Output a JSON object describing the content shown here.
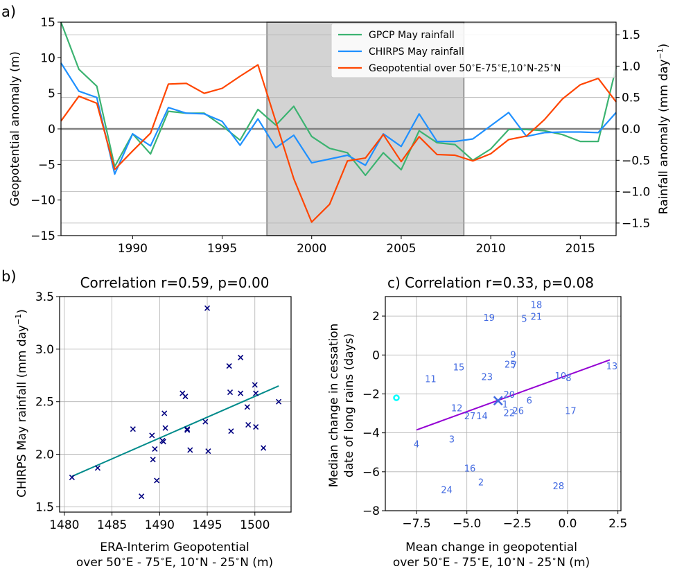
{
  "panels": {
    "a_label": "a)",
    "b_label": "b)",
    "c_label": "c)"
  },
  "chart_data": [
    {
      "type": "line",
      "panel": "a",
      "title": "",
      "xlabel": "",
      "ylabel": "Geopotential anomaly (m)",
      "ylabel_right_text": "Rainfall anomaly (mm day",
      "ylabel_right_sup": "−1",
      "xlim": [
        1986,
        2017
      ],
      "ylim": [
        -15,
        15
      ],
      "ylim_right": [
        -1.7,
        1.7
      ],
      "xticks": [
        1990,
        1995,
        2000,
        2005,
        2010,
        2015
      ],
      "yticks": [
        -15,
        -10,
        -5,
        0,
        5,
        10,
        15
      ],
      "yticks_right": [
        -1.5,
        -1.0,
        -0.5,
        0.0,
        0.5,
        1.0,
        1.5
      ],
      "ytick_labels_right": [
        "−1.5",
        "−1.0",
        "−0.5",
        "0.0",
        "0.5",
        "1.0",
        "1.5"
      ],
      "ytick_labels": [
        "−15",
        "−10",
        "−5",
        "0",
        "5",
        "10",
        "15"
      ],
      "shaded_period": [
        1997.5,
        2008.5
      ],
      "grid": "horizontal (right axis)",
      "legend_position": "upper-center",
      "series": [
        {
          "name": "GPCP May rainfall",
          "axis": "right",
          "color": "#3cb371",
          "x": [
            1986,
            1987,
            1988,
            1989,
            1990,
            1991,
            1992,
            1993,
            1994,
            1995,
            1996,
            1997,
            1998,
            1999,
            2000,
            2001,
            2002,
            2003,
            2004,
            2005,
            2006,
            2007,
            2008,
            2009,
            2010,
            2011,
            2012,
            2013,
            2014,
            2015,
            2016,
            2017
          ],
          "values": [
            1.7,
            0.95,
            0.68,
            -0.6,
            -0.08,
            -0.4,
            0.28,
            0.25,
            0.25,
            0.05,
            -0.18,
            0.31,
            0.06,
            0.36,
            -0.12,
            -0.31,
            -0.38,
            -0.74,
            -0.38,
            -0.65,
            -0.03,
            -0.22,
            -0.25,
            -0.5,
            -0.32,
            -0.01,
            -0.01,
            -0.03,
            -0.09,
            -0.2,
            -0.2,
            0.98
          ]
        },
        {
          "name": "CHIRPS May rainfall",
          "axis": "right",
          "color": "#1e90ff",
          "x": [
            1986,
            1987,
            1988,
            1989,
            1990,
            1991,
            1992,
            1993,
            1994,
            1995,
            1996,
            1997,
            1998,
            1999,
            2000,
            2001,
            2002,
            2003,
            2004,
            2005,
            2006,
            2007,
            2008,
            2009,
            2010,
            2011,
            2012,
            2013,
            2014,
            2015,
            2016,
            2017
          ],
          "values": [
            1.05,
            0.6,
            0.5,
            -0.72,
            -0.08,
            -0.27,
            0.34,
            0.25,
            0.24,
            0.12,
            -0.26,
            0.16,
            -0.3,
            -0.1,
            -0.54,
            -0.48,
            -0.42,
            -0.58,
            -0.08,
            -0.28,
            0.24,
            -0.2,
            -0.2,
            -0.16,
            0.05,
            0.26,
            -0.12,
            -0.06,
            -0.05,
            -0.05,
            -0.06,
            0.26
          ]
        },
        {
          "name": "Geopotential over 50°E-75°E,10°N-25°N",
          "axis": "left",
          "color": "#ff4500",
          "x": [
            1986,
            1987,
            1988,
            1989,
            1990,
            1991,
            1992,
            1993,
            1994,
            1995,
            1996,
            1997,
            1998,
            1999,
            2000,
            2001,
            2002,
            2003,
            2004,
            2005,
            2006,
            2007,
            2008,
            2009,
            2010,
            2011,
            2012,
            2013,
            2014,
            2015,
            2016,
            2017
          ],
          "values": [
            1.1,
            4.6,
            3.6,
            -5.7,
            -3.1,
            -0.6,
            6.3,
            6.4,
            5.0,
            5.7,
            7.4,
            9.0,
            1.0,
            -7.0,
            -13.1,
            -10.6,
            -4.5,
            -4.1,
            -0.8,
            -4.6,
            -1.1,
            -3.6,
            -3.7,
            -4.5,
            -3.5,
            -1.5,
            -1.0,
            1.3,
            4.2,
            6.2,
            7.1,
            3.8
          ]
        }
      ]
    },
    {
      "type": "scatter",
      "panel": "b",
      "title": "Correlation r=0.59, p=0.00",
      "xlabel": "ERA-Interim Geopotential",
      "xlabel2_prefix": "over 50",
      "xlabel2_mid1": "E - 75",
      "xlabel2_mid2": "E, 10",
      "xlabel2_mid3": "N - 25",
      "xlabel2_suffix": "N (m)",
      "ylabel": "CHIRPS May rainfall (mm day",
      "ylabel_sup": "−1",
      "xlim": [
        1479.5,
        1503.8
      ],
      "ylim": [
        1.45,
        3.5
      ],
      "xticks": [
        1480,
        1485,
        1490,
        1495,
        1500
      ],
      "yticks": [
        1.5,
        2.0,
        2.5,
        3.0,
        3.5
      ],
      "ytick_labels": [
        "1.5",
        "2.0",
        "2.5",
        "3.0",
        "3.5"
      ],
      "grid": true,
      "marker_color": "#000080",
      "fit_color": "#008b8b",
      "fit_line": {
        "x": [
          1480.8,
          1502.5
        ],
        "y": [
          1.79,
          2.65
        ]
      },
      "points": [
        [
          1480.8,
          1.78
        ],
        [
          1483.5,
          1.87
        ],
        [
          1487.2,
          2.24
        ],
        [
          1488.1,
          1.6
        ],
        [
          1489.2,
          2.18
        ],
        [
          1489.3,
          1.95
        ],
        [
          1489.5,
          2.05
        ],
        [
          1489.7,
          1.75
        ],
        [
          1490.3,
          2.13
        ],
        [
          1490.4,
          2.12
        ],
        [
          1490.5,
          2.39
        ],
        [
          1490.6,
          2.25
        ],
        [
          1492.4,
          2.58
        ],
        [
          1492.7,
          2.55
        ],
        [
          1492.9,
          2.24
        ],
        [
          1492.9,
          2.23
        ],
        [
          1493.2,
          2.04
        ],
        [
          1494.8,
          2.31
        ],
        [
          1495.0,
          3.39
        ],
        [
          1495.1,
          2.03
        ],
        [
          1497.3,
          2.84
        ],
        [
          1497.4,
          2.59
        ],
        [
          1497.5,
          2.22
        ],
        [
          1498.5,
          2.92
        ],
        [
          1498.5,
          2.58
        ],
        [
          1499.2,
          2.45
        ],
        [
          1499.3,
          2.28
        ],
        [
          1500.0,
          2.66
        ],
        [
          1500.1,
          2.58
        ],
        [
          1500.1,
          2.26
        ],
        [
          1500.9,
          2.06
        ],
        [
          1502.5,
          2.5
        ]
      ]
    },
    {
      "type": "scatter",
      "panel": "c",
      "title": "c) Correlation r=0.33, p=0.08",
      "xlabel": "Mean change in geopotential",
      "xlabel2_prefix": "over 50",
      "xlabel2_mid1": "E - 75",
      "xlabel2_mid2": "E, 10",
      "xlabel2_mid3": "N - 25",
      "xlabel2_suffix": "N (m)",
      "ylabel": "Median change in cessation",
      "ylabel2": "date of long rains (days)",
      "xlim": [
        -9.05,
        2.65
      ],
      "ylim": [
        -8,
        3
      ],
      "xticks": [
        -7.5,
        -5.0,
        -2.5,
        0.0,
        2.5
      ],
      "xtick_labels": [
        "−7.5",
        "−5.0",
        "−2.5",
        "0.0",
        "2.5"
      ],
      "yticks": [
        -8,
        -6,
        -4,
        -2,
        0,
        2
      ],
      "ytick_labels": [
        "−8",
        "−6",
        "−4",
        "−2",
        "0",
        "2"
      ],
      "grid": true,
      "label_color": "#4169e1",
      "fit_color": "#9400d3",
      "fit_line": {
        "x": [
          -7.5,
          2.1
        ],
        "y": [
          -3.85,
          -0.25
        ]
      },
      "mean_marker": {
        "x": -3.45,
        "y": -2.35,
        "color": "#4169e1"
      },
      "outlier_marker": {
        "x": -8.5,
        "y": -2.2,
        "color": "#00ffff"
      },
      "labelled_points": [
        {
          "label": "18",
          "x": -1.55,
          "y": 2.55
        },
        {
          "label": "19",
          "x": -3.9,
          "y": 1.9
        },
        {
          "label": "5",
          "x": -2.15,
          "y": 1.85
        },
        {
          "label": "21",
          "x": -1.55,
          "y": 1.95
        },
        {
          "label": "9",
          "x": -2.7,
          "y": 0.0
        },
        {
          "label": "25",
          "x": -2.85,
          "y": -0.5
        },
        {
          "label": "7",
          "x": -2.65,
          "y": -0.55
        },
        {
          "label": "15",
          "x": -5.4,
          "y": -0.65
        },
        {
          "label": "11",
          "x": -6.8,
          "y": -1.25
        },
        {
          "label": "23",
          "x": -4.0,
          "y": -1.15
        },
        {
          "label": "10",
          "x": -0.35,
          "y": -1.1
        },
        {
          "label": "8",
          "x": 0.05,
          "y": -1.2
        },
        {
          "label": "13",
          "x": 2.2,
          "y": -0.6
        },
        {
          "label": "20",
          "x": -2.9,
          "y": -2.05
        },
        {
          "label": "6",
          "x": -1.9,
          "y": -2.35
        },
        {
          "label": "1",
          "x": -3.1,
          "y": -2.55
        },
        {
          "label": "12",
          "x": -5.5,
          "y": -2.75
        },
        {
          "label": "26",
          "x": -2.45,
          "y": -2.9
        },
        {
          "label": "22",
          "x": -2.9,
          "y": -3.0
        },
        {
          "label": "27",
          "x": -4.85,
          "y": -3.15
        },
        {
          "label": "14",
          "x": -4.25,
          "y": -3.15
        },
        {
          "label": "17",
          "x": 0.15,
          "y": -2.9
        },
        {
          "label": "3",
          "x": -5.75,
          "y": -4.35
        },
        {
          "label": "4",
          "x": -7.5,
          "y": -4.6
        },
        {
          "label": "16",
          "x": -4.85,
          "y": -5.85
        },
        {
          "label": "2",
          "x": -4.3,
          "y": -6.55
        },
        {
          "label": "24",
          "x": -6.0,
          "y": -6.95
        },
        {
          "label": "28",
          "x": -0.45,
          "y": -6.75
        }
      ]
    }
  ]
}
